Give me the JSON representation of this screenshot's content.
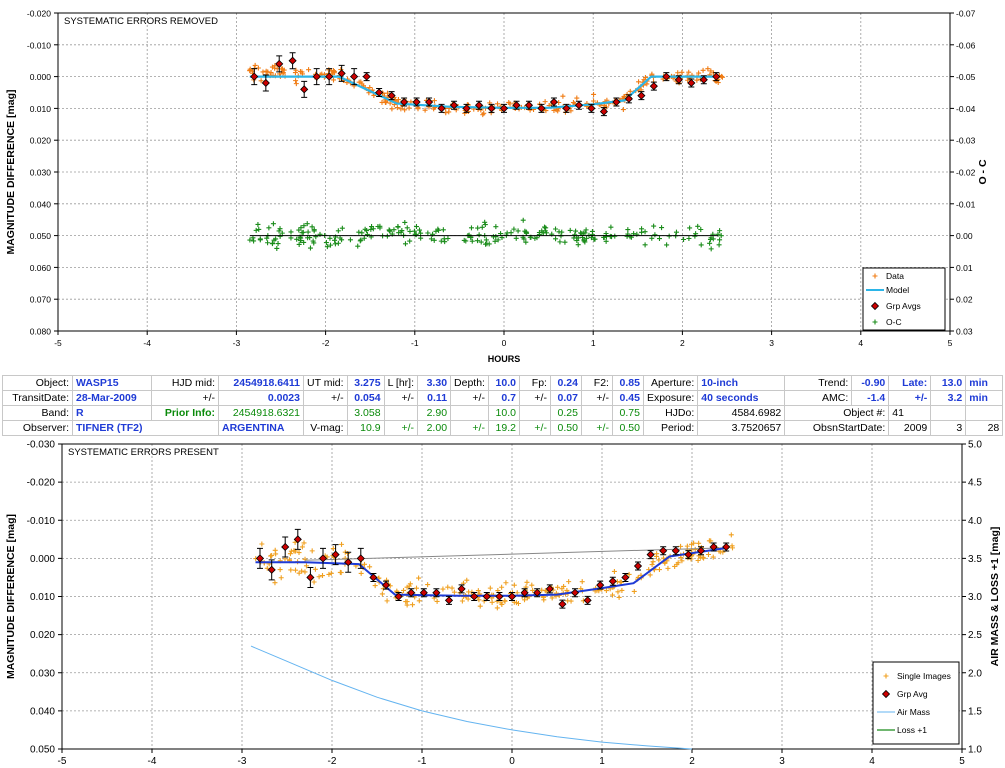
{
  "chart_data": [
    {
      "type": "scatter",
      "title": "SYSTEMATIC ERRORS REMOVED",
      "xlabel": "HOURS",
      "ylabel": "MAGNITUDE DIFFERENCE [mag]",
      "y2label": "O - C",
      "xlim": [
        -5,
        5
      ],
      "ylim": [
        -0.02,
        0.08
      ],
      "y_inverted": true,
      "y2lim": [
        -0.07,
        0.03
      ],
      "xticks": [
        "-5",
        "-4",
        "-3",
        "-2",
        "-1",
        "0",
        "1",
        "2",
        "3",
        "4",
        "5"
      ],
      "yticks": [
        "-0.020",
        "-0.010",
        "0.000",
        "0.010",
        "0.020",
        "0.030",
        "0.040",
        "0.050",
        "0.060",
        "0.070",
        "0.080"
      ],
      "y2ticks": [
        "-0.07",
        "-0.06",
        "-0.05",
        "-0.04",
        "-0.03",
        "-0.02",
        "-0.01",
        "0.00",
        "0.01",
        "0.02",
        "0.03"
      ],
      "grid": true,
      "legend_position": "bottom-right",
      "legend": [
        "Data",
        "Model",
        "Grp Avgs",
        "O-C"
      ],
      "colors": {
        "data": "#f07c14",
        "model": "#2bb5e8",
        "grp": "#cc0000",
        "oc": "#1a8c1a"
      },
      "model": {
        "x": [
          -2.85,
          -2.2,
          -1.85,
          -1.2,
          -0.6,
          0.0,
          0.5,
          1.0,
          1.35,
          1.65,
          2.4
        ],
        "y": [
          0.0,
          0.0,
          0.0,
          0.0085,
          0.0095,
          0.0098,
          0.0098,
          0.0087,
          0.0075,
          0.0,
          0.0
        ]
      },
      "oc_line": {
        "x": [
          -2.85,
          2.4
        ],
        "y": [
          0.0,
          0.0
        ]
      },
      "grp_avgs": {
        "x": [
          -2.8,
          -2.67,
          -2.52,
          -2.37,
          -2.24,
          -2.1,
          -1.96,
          -1.82,
          -1.68,
          -1.54,
          -1.4,
          -1.26,
          -1.12,
          -0.98,
          -0.84,
          -0.7,
          -0.56,
          -0.42,
          -0.28,
          -0.14,
          0.0,
          0.14,
          0.28,
          0.42,
          0.56,
          0.7,
          0.84,
          0.98,
          1.12,
          1.26,
          1.4,
          1.54,
          1.68,
          1.82,
          1.96,
          2.1,
          2.24,
          2.38
        ],
        "y": [
          0.0,
          0.002,
          -0.004,
          -0.005,
          0.004,
          0.0,
          0.0,
          -0.001,
          0.0,
          0.0,
          0.005,
          0.006,
          0.008,
          0.008,
          0.008,
          0.01,
          0.009,
          0.01,
          0.009,
          0.01,
          0.01,
          0.009,
          0.009,
          0.01,
          0.008,
          0.01,
          0.009,
          0.01,
          0.011,
          0.008,
          0.007,
          0.006,
          0.003,
          0.0,
          0.001,
          0.002,
          0.001,
          0.0
        ]
      }
    },
    {
      "type": "scatter",
      "title": "SYSTEMATIC ERRORS PRESENT",
      "xlabel": "",
      "ylabel": "MAGNITUDE DIFFERENCE [mag]",
      "y2label": "AIR MASS & LOSS +1 [mag]",
      "xlim": [
        -5,
        5
      ],
      "ylim": [
        -0.03,
        0.05
      ],
      "y_inverted": true,
      "y2lim": [
        1.0,
        5.0
      ],
      "xticks": [
        "-5",
        "-4",
        "-3",
        "-2",
        "-1",
        "0",
        "1",
        "2",
        "3",
        "4",
        "5"
      ],
      "yticks": [
        "-0.030",
        "-0.020",
        "-0.010",
        "0.000",
        "0.010",
        "0.020",
        "0.030",
        "0.040",
        "0.050"
      ],
      "y2ticks": [
        "5.0",
        "4.5",
        "4.0",
        "3.5",
        "3.0",
        "2.5",
        "2.0",
        "1.5",
        "1.0"
      ],
      "grid": true,
      "legend_position": "bottom-right",
      "legend": [
        "Single Images",
        "Grp Avg",
        "Air Mass",
        "Loss +1"
      ],
      "colors": {
        "data": "#f0a020",
        "model": "#1f3bd6",
        "grp": "#cc0000",
        "airmass": "#64b4f0",
        "loss": "#1a8c1a",
        "trend": "#888888"
      },
      "model": {
        "x": [
          -2.85,
          -2.3,
          -1.7,
          -1.3,
          -0.6,
          0.0,
          0.5,
          1.0,
          1.35,
          1.75,
          2.4
        ],
        "y": [
          0.001,
          0.001,
          0.0015,
          0.0095,
          0.0098,
          0.0098,
          0.0095,
          0.0078,
          0.0065,
          -0.0005,
          -0.0028
        ]
      },
      "trend_line": {
        "x": [
          -2.3,
          2.4
        ],
        "y": [
          0.0005,
          -0.0028
        ]
      },
      "air_mass": {
        "x": [
          -2.9,
          -2.5,
          -2.0,
          -1.5,
          -1.0,
          -0.5,
          0.0,
          0.5,
          1.0,
          1.5,
          2.0
        ],
        "y2": [
          2.35,
          2.15,
          1.9,
          1.68,
          1.5,
          1.36,
          1.25,
          1.16,
          1.09,
          1.04,
          1.0
        ]
      },
      "grp_avgs": {
        "x": [
          -2.8,
          -2.67,
          -2.52,
          -2.38,
          -2.24,
          -2.1,
          -1.96,
          -1.82,
          -1.68,
          -1.54,
          -1.4,
          -1.26,
          -1.12,
          -0.98,
          -0.84,
          -0.7,
          -0.56,
          -0.42,
          -0.28,
          -0.14,
          0.0,
          0.14,
          0.28,
          0.42,
          0.56,
          0.7,
          0.84,
          0.98,
          1.12,
          1.26,
          1.4,
          1.54,
          1.68,
          1.82,
          1.96,
          2.1,
          2.24,
          2.38
        ],
        "y": [
          0.0,
          0.003,
          -0.003,
          -0.005,
          0.005,
          0.0,
          -0.001,
          0.001,
          0.0,
          0.005,
          0.007,
          0.01,
          0.009,
          0.009,
          0.009,
          0.011,
          0.008,
          0.01,
          0.01,
          0.01,
          0.01,
          0.009,
          0.009,
          0.008,
          0.012,
          0.009,
          0.011,
          0.007,
          0.006,
          0.005,
          0.002,
          -0.001,
          -0.002,
          -0.002,
          -0.001,
          -0.002,
          -0.003,
          -0.003
        ]
      }
    }
  ],
  "info": {
    "object_label": "Object:",
    "object": "WASP15",
    "hjd_mid_label": "HJD mid:",
    "hjd_mid": "2454918.6411",
    "ut_mid_label": "UT mid:",
    "ut_mid": "3.275",
    "l_hr_label": "L [hr]:",
    "l_hr": "3.30",
    "depth_label": "Depth:",
    "depth": "10.0",
    "fp_label": "Fp:",
    "fp": "0.24",
    "f2_label": "F2:",
    "f2": "0.85",
    "aperture_label": "Aperture:",
    "aperture": "10-inch",
    "trend_label": "Trend:",
    "trend": "-0.90",
    "late_label": "Late:",
    "late": "13.0",
    "min1": "min",
    "transit_label": "TransitDate:",
    "transit": "28-Mar-2009",
    "pm": "+/-",
    "hjd_err": "0.0023",
    "ut_err": "0.054",
    "l_err": "0.11",
    "depth_err": "0.7",
    "fp_err": "0.07",
    "f2_err": "0.45",
    "exposure_label": "Exposure:",
    "exposure": "40 seconds",
    "amc_label": "AMC:",
    "amc": "-1.4",
    "late_err": "3.2",
    "min2": "min",
    "band_label": "Band:",
    "band": "R",
    "prior_label": "Prior Info:",
    "prior_hjd": "2454918.6321",
    "prior_ut": "3.058",
    "prior_l": "2.90",
    "prior_depth": "10.0",
    "prior_fp": "0.25",
    "prior_f2": "0.75",
    "hjdo_label": "HJDo:",
    "hjdo": "4584.6982",
    "objnum_label": "Object #:",
    "objnum": "41",
    "observer_label": "Observer:",
    "observer": "TIFNER (TF2)",
    "country": "ARGENTINA",
    "vmag_label": "V-mag:",
    "vmag": "10.9",
    "e1": "2.00",
    "e2": "19.2",
    "e3": "0.50",
    "e4": "0.50",
    "period_label": "Period:",
    "period": "3.7520657",
    "obs_label": "ObsnStartDate:",
    "obs_y": "2009",
    "obs_m": "3",
    "obs_d": "28"
  }
}
